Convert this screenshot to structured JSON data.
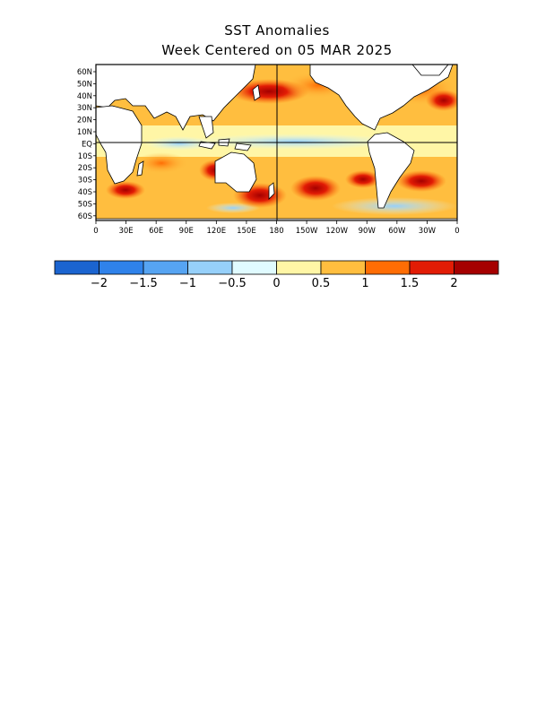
{
  "header": {
    "title": "SST Anomalies",
    "subtitle": "Week Centered on 05 MAR 2025"
  },
  "map": {
    "lat_labels": [
      "60N",
      "50N",
      "40N",
      "30N",
      "20N",
      "10N",
      "EQ",
      "10S",
      "20S",
      "30S",
      "40S",
      "50S",
      "60S"
    ],
    "lon_labels": [
      "0",
      "30E",
      "60E",
      "90E",
      "120E",
      "150E",
      "180",
      "150W",
      "120W",
      "90W",
      "60W",
      "30W",
      "0"
    ]
  },
  "colorbar": {
    "colors": [
      "#1b64d0",
      "#2f82ea",
      "#56a4f2",
      "#96d0fa",
      "#e0fbff",
      "#fff6a6",
      "#ffbe3f",
      "#ff6d04",
      "#e21c05",
      "#a50000"
    ],
    "labels": [
      "−2",
      "−1.5",
      "−1",
      "−0.5",
      "0",
      "0.5",
      "1",
      "1.5",
      "2"
    ]
  }
}
